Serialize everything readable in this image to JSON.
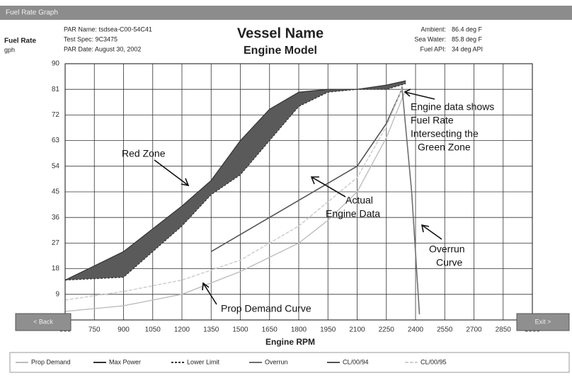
{
  "window": {
    "title": "Fuel Rate Graph"
  },
  "header": {
    "y_label": "Fuel Rate",
    "y_unit": "gph",
    "info": [
      "PAR Name: tsdsea-C00-54C41",
      "Test Spec: 9C3475",
      "PAR Date: August 30, 2002"
    ],
    "vessel": "Vessel Name",
    "engine": "Engine Model",
    "conditions": [
      {
        "label": "Ambient:",
        "value": "86.4 deg F"
      },
      {
        "label": "Sea Water:",
        "value": "85.8 deg F"
      },
      {
        "label": "Fuel API:",
        "value": "34 deg API"
      }
    ]
  },
  "chart_data": {
    "type": "line",
    "x_label": "Engine RPM",
    "xlim": [
      600,
      3000
    ],
    "xticks": [
      600,
      750,
      900,
      1050,
      1200,
      1350,
      1500,
      1650,
      1800,
      1950,
      2100,
      2250,
      2400,
      2550,
      2700,
      2850,
      3000
    ],
    "ylim": [
      0,
      90
    ],
    "yticks": [
      0,
      9,
      18,
      27,
      36,
      45,
      54,
      63,
      72,
      81,
      90
    ],
    "grid": true,
    "zone_fill": "#5a5a5a",
    "series": [
      {
        "name": "Prop Demand",
        "color": "#bdbdbd",
        "x": [
          600,
          900,
          1200,
          1350,
          1500,
          1800,
          1950,
          2100,
          2250,
          2350
        ],
        "values": [
          3,
          5,
          9,
          13,
          17,
          27,
          35,
          45,
          64,
          81
        ]
      },
      {
        "name": "Max Power",
        "color": "#333333",
        "x": [
          600,
          900,
          1200,
          1350,
          1500,
          1650,
          1800,
          1950,
          2100,
          2250,
          2350
        ],
        "values": [
          14,
          24,
          40,
          49,
          63,
          74,
          80,
          81,
          81,
          82.5,
          84
        ]
      },
      {
        "name": "Lower Limit",
        "color": "#333333",
        "x": [
          600,
          900,
          1200,
          1350,
          1500,
          1650,
          1800,
          1950,
          2100,
          2250,
          2350
        ],
        "values": [
          14,
          15,
          33,
          44,
          51,
          63,
          75,
          80,
          81,
          81,
          83
        ]
      },
      {
        "name": "Overrun",
        "color": "#6e6e6e",
        "x": [
          2330,
          2380,
          2420
        ],
        "values": [
          82,
          45,
          2
        ]
      },
      {
        "name": "CL/00/94",
        "color": "#555555",
        "x": [
          1350,
          1500,
          1800,
          2100,
          2250,
          2330
        ],
        "values": [
          24,
          30,
          42,
          54,
          69,
          81
        ]
      },
      {
        "name": "CL/00/95",
        "color": "#d0d0d0",
        "x": [
          600,
          900,
          1200,
          1500,
          1800,
          2100,
          2250,
          2330
        ],
        "values": [
          7,
          10,
          14,
          21,
          33,
          50,
          68,
          81
        ]
      }
    ],
    "annotations": [
      {
        "lines": [
          "Red Zone"
        ]
      },
      {
        "lines": [
          "Actual",
          "Engine Data"
        ]
      },
      {
        "lines": [
          "Engine data shows",
          "Fuel Rate",
          "Intersecting the",
          "Green Zone"
        ]
      },
      {
        "lines": [
          "Overrun",
          "Curve"
        ]
      },
      {
        "lines": [
          "Prop Demand Curve"
        ]
      }
    ]
  },
  "buttons": [
    "< Back",
    "Exit >"
  ]
}
